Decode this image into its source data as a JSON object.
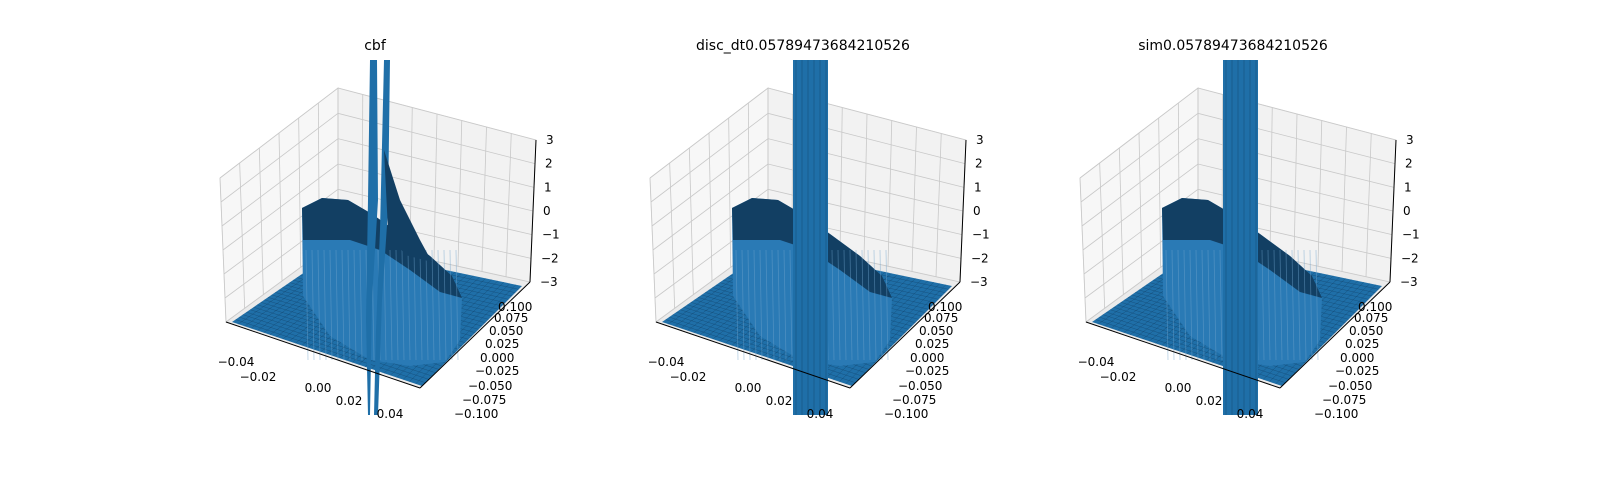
{
  "chart_data": [
    {
      "type": "surface3d",
      "title": "cbf",
      "x_ticks": [
        "−0.04",
        "−0.02",
        "0.00",
        "0.02",
        "0.04"
      ],
      "y_ticks": [
        "−0.100",
        "−0.075",
        "−0.050",
        "−0.025",
        "0.000",
        "0.025",
        "0.050",
        "0.075",
        "0.100"
      ],
      "z_ticks": [
        "−3",
        "−2",
        "−1",
        "0",
        "1",
        "2",
        "3"
      ],
      "xlim": [
        -0.05,
        0.05
      ],
      "ylim": [
        -0.1,
        0.1
      ],
      "zlim": [
        -3,
        3
      ],
      "surface_color": "#1f77b4",
      "grid": true
    },
    {
      "type": "surface3d",
      "title": "disc_dt0.05789473684210526",
      "x_ticks": [
        "−0.04",
        "−0.02",
        "0.00",
        "0.02",
        "0.04"
      ],
      "y_ticks": [
        "−0.100",
        "−0.075",
        "−0.050",
        "−0.025",
        "0.000",
        "0.025",
        "0.050",
        "0.075",
        "0.100"
      ],
      "z_ticks": [
        "−3",
        "−2",
        "−1",
        "0",
        "1",
        "2",
        "3"
      ],
      "xlim": [
        -0.05,
        0.05
      ],
      "ylim": [
        -0.1,
        0.1
      ],
      "zlim": [
        -3,
        3
      ],
      "surface_color": "#1f77b4",
      "grid": true
    },
    {
      "type": "surface3d",
      "title": "sim0.05789473684210526",
      "x_ticks": [
        "−0.04",
        "−0.02",
        "0.00",
        "0.02",
        "0.04"
      ],
      "y_ticks": [
        "−0.100",
        "−0.075",
        "−0.050",
        "−0.025",
        "0.000",
        "0.025",
        "0.050",
        "0.075",
        "0.100"
      ],
      "z_ticks": [
        "−3",
        "−2",
        "−1",
        "0",
        "1",
        "2",
        "3"
      ],
      "xlim": [
        -0.05,
        0.05
      ],
      "ylim": [
        -0.1,
        0.1
      ],
      "zlim": [
        -3,
        3
      ],
      "surface_color": "#1f77b4",
      "grid": true
    }
  ]
}
